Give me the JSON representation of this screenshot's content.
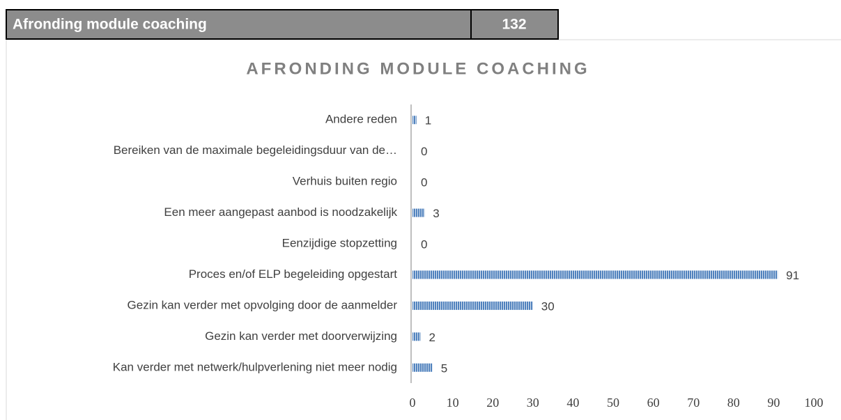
{
  "header": {
    "title": "Afronding module coaching",
    "value": 132
  },
  "chart_data": {
    "type": "barh",
    "title": "AFRONDING MODULE COACHING",
    "categories": [
      "Andere reden",
      "Bereiken van de maximale begeleidingsduur van de…",
      "Verhuis buiten regio",
      "Een meer aangepast aanbod is noodzakelijk",
      "Eenzijdige stopzetting",
      "Proces en/of ELP begeleiding opgestart",
      "Gezin kan verder met opvolging door de aanmelder",
      "Gezin kan verder met doorverwijzing",
      "Kan verder met netwerk/hulpverlening niet meer nodig"
    ],
    "values": [
      1,
      0,
      0,
      3,
      0,
      91,
      30,
      2,
      5
    ],
    "color": "#4f81bd",
    "xlim": [
      0,
      100
    ],
    "xticks": [
      0,
      10,
      20,
      30,
      40,
      50,
      60,
      70,
      80,
      90,
      100
    ],
    "grid": false
  }
}
